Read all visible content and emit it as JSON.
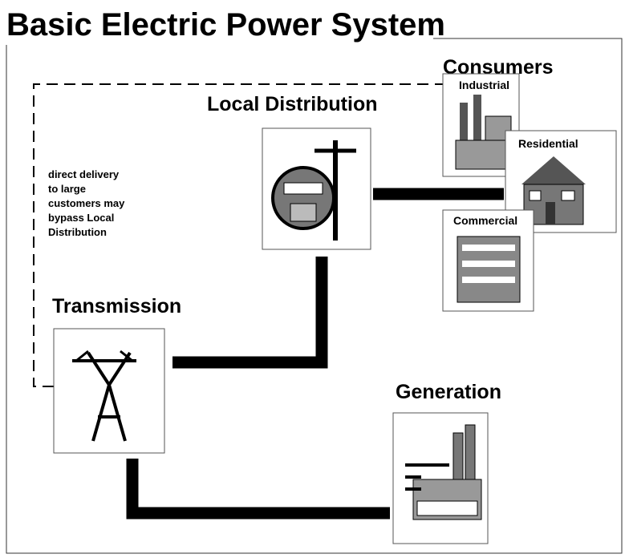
{
  "title": "Basic Electric Power System",
  "nodes": [
    {
      "label": "Local Distribution"
    },
    {
      "label": "Transmission"
    },
    {
      "label": "Generation"
    }
  ],
  "consumers": {
    "label": "Consumers",
    "types": [
      "Industrial",
      "Residential",
      "Commercial"
    ]
  },
  "note": [
    "direct delivery",
    "to large",
    "customers may",
    "bypass Local",
    "Distribution"
  ]
}
